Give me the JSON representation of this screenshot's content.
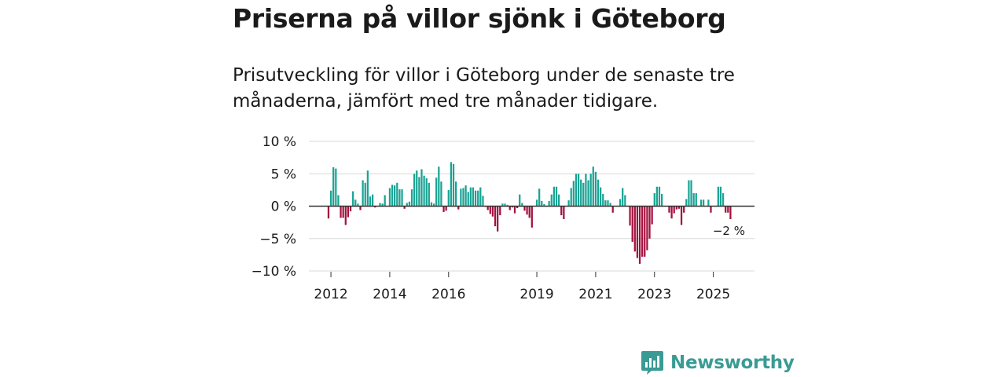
{
  "header": {
    "title": "Priserna på villor sjönk i Göteborg",
    "subtitle": "Prisutveckling för villor i Göteborg under de senaste tre månaderna, jämfört med tre månader tidigare."
  },
  "brand": {
    "name": "Newsworthy",
    "icon": "newsworthy-logo-icon",
    "color": "#3a9b95"
  },
  "colors": {
    "positive": "#1aa394",
    "negative": "#a3123f",
    "grid": "#d9d9d9",
    "zero_line": "#333333"
  },
  "chart_data": {
    "type": "bar",
    "title": "Priserna på villor sjönk i Göteborg",
    "ylabel": "",
    "xlabel": "",
    "ylim": [
      -10,
      10
    ],
    "yticks": [
      10,
      5,
      0,
      -5,
      -10
    ],
    "ytick_labels": [
      "10 %",
      "5 %",
      "0 %",
      "−5 %",
      "−10 %"
    ],
    "xlim": [
      2011.25,
      2026.4
    ],
    "xticks": [
      2012,
      2014,
      2016,
      2019,
      2021,
      2023,
      2025
    ],
    "xtick_labels": [
      "2012",
      "2014",
      "2016",
      "2019",
      "2021",
      "2023",
      "2025"
    ],
    "x_start": 2011.917,
    "x_step": 0.08333,
    "values": [
      -1.9,
      2.4,
      6.0,
      5.8,
      1.7,
      -1.8,
      -1.8,
      -2.9,
      -1.7,
      -0.8,
      2.3,
      1.0,
      0.4,
      -0.6,
      4.0,
      3.6,
      5.5,
      1.5,
      1.8,
      -0.2,
      0.0,
      0.5,
      0.4,
      1.7,
      0.0,
      2.8,
      3.3,
      3.2,
      3.6,
      2.6,
      2.6,
      -0.4,
      0.5,
      0.7,
      2.6,
      5.0,
      5.5,
      4.5,
      5.7,
      4.7,
      4.3,
      3.6,
      0.6,
      0.4,
      4.4,
      6.1,
      3.8,
      -0.9,
      -0.7,
      2.5,
      6.8,
      6.5,
      3.8,
      -0.5,
      2.7,
      2.8,
      3.2,
      2.2,
      2.9,
      2.9,
      2.4,
      2.4,
      2.9,
      1.6,
      -0.1,
      -0.6,
      -1.2,
      -1.6,
      -3.1,
      -3.9,
      -1.4,
      0.4,
      0.4,
      0.2,
      -0.6,
      -0.2,
      -1.1,
      -0.3,
      1.8,
      0.5,
      -0.7,
      -1.3,
      -1.8,
      -3.3,
      0.0,
      1.0,
      2.7,
      0.8,
      0.3,
      0.0,
      0.8,
      1.8,
      3.0,
      3.0,
      1.8,
      -1.4,
      -2.0,
      0.0,
      0.9,
      2.8,
      3.9,
      5.0,
      5.0,
      4.1,
      3.6,
      5.0,
      4.0,
      5.0,
      6.1,
      5.3,
      4.1,
      2.9,
      1.9,
      0.9,
      0.9,
      0.5,
      -1.0,
      0.0,
      0.0,
      1.1,
      2.8,
      1.7,
      0.0,
      -3.0,
      -5.5,
      -7.0,
      -8.0,
      -8.9,
      -7.8,
      -7.8,
      -6.8,
      -5.0,
      -2.8,
      2.0,
      3.0,
      3.0,
      1.9,
      0.0,
      0.0,
      -1.0,
      -1.9,
      -1.1,
      -0.5,
      -0.4,
      -2.9,
      -1.0,
      1.1,
      4.0,
      4.0,
      2.0,
      2.0,
      0.0,
      1.0,
      1.0,
      0.0,
      1.0,
      -1.0,
      0.0,
      0.0,
      3.0,
      3.0,
      2.0,
      -1.0,
      -1.0,
      -2.0
    ],
    "annotations": [
      {
        "text": "−2 %",
        "target": "last_bar"
      }
    ]
  }
}
